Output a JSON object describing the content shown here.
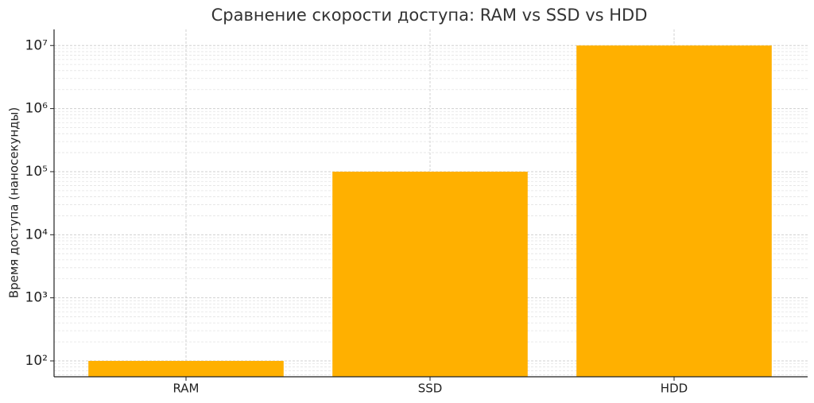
{
  "chart_data": {
    "type": "bar",
    "title": "Сравнение скорости доступа: RAM vs SSD vs HDD",
    "y_label": "Время доступа (наносекунды)",
    "categories": [
      "RAM",
      "SSD",
      "HDD"
    ],
    "values": [
      100,
      100000,
      10000000
    ],
    "color": "#ffb000",
    "y_scale": "log",
    "ylim": [
      56,
      18000000
    ],
    "yticks": [
      {
        "value": 100,
        "label": "10²"
      },
      {
        "value": 1000,
        "label": "10³"
      },
      {
        "value": 10000,
        "label": "10⁴"
      },
      {
        "value": 100000,
        "label": "10⁵"
      },
      {
        "value": 1000000,
        "label": "10⁶"
      },
      {
        "value": 10000000,
        "label": "10⁷"
      }
    ],
    "grid": true,
    "minor_grid": true
  }
}
